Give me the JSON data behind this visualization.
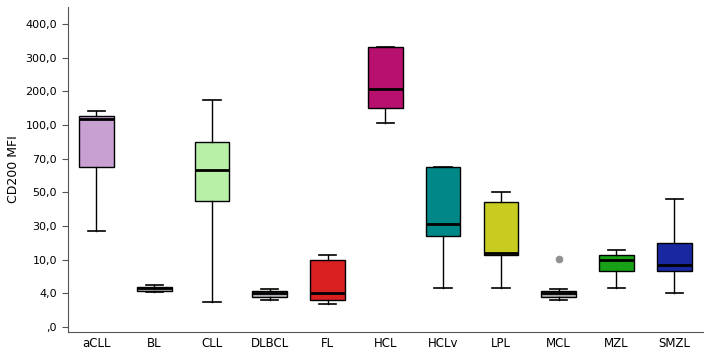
{
  "categories": [
    "aCLL",
    "BL",
    "CLL",
    "DLBCL",
    "FL",
    "HCL",
    "HCLv",
    "LPL",
    "MCL",
    "MZL",
    "SMZL"
  ],
  "box_colors": [
    "#c8a0d2",
    "#b0b0b8",
    "#b8f0a8",
    "#b0b0b8",
    "#d82020",
    "#b8106e",
    "#008888",
    "#c8cc20",
    "#a8a8a8",
    "#18a018",
    "#1828a0"
  ],
  "ylabel": "CD200 MFI",
  "ytick_vals": [
    0.0,
    4.0,
    10.0,
    30.0,
    50.0,
    70.0,
    100.0,
    200.0,
    300.0,
    400.0
  ],
  "ytick_labels": [
    ",0",
    "4,0",
    "10,0",
    "30,0",
    "50,0",
    "70,0",
    "100,0",
    "200,0",
    "300,0",
    "400,0"
  ],
  "boxes": {
    "aCLL": {
      "whislo": 27,
      "q1": 65,
      "med": 118,
      "q3": 127,
      "whishi": 140
    },
    "BL": {
      "whislo": 4.2,
      "q1": 4.5,
      "med": 5.0,
      "q3": 5.2,
      "whishi": 5.5
    },
    "CLL": {
      "whislo": 3,
      "q1": 45,
      "med": 63,
      "q3": 85,
      "whishi": 175
    },
    "DLBCL": {
      "whislo": 3.2,
      "q1": 3.6,
      "med": 4.0,
      "q3": 4.4,
      "whishi": 4.8
    },
    "FL": {
      "whislo": 2.8,
      "q1": 3.2,
      "med": 4.0,
      "q3": 10,
      "whishi": 13
    },
    "HCL": {
      "whislo": 105,
      "q1": 150,
      "med": 207,
      "q3": 330,
      "whishi": 330
    },
    "HCLv": {
      "whislo": 5,
      "q1": 24,
      "med": 31,
      "q3": 65,
      "whishi": 65
    },
    "LPL": {
      "whislo": 5,
      "q1": 13,
      "med": 14,
      "q3": 44,
      "whishi": 50
    },
    "MCL": {
      "whislo": 3.2,
      "q1": 3.6,
      "med": 4.0,
      "q3": 4.4,
      "whishi": 4.8
    },
    "MZL": {
      "whislo": 5,
      "q1": 8,
      "med": 10,
      "q3": 13,
      "whishi": 16
    },
    "SMZL": {
      "whislo": 4,
      "q1": 8,
      "med": 9,
      "q3": 20,
      "whishi": 46
    }
  },
  "outliers": {
    "MCL": [
      10.5
    ]
  },
  "flier_colors": {
    "MCL": "#909090"
  }
}
